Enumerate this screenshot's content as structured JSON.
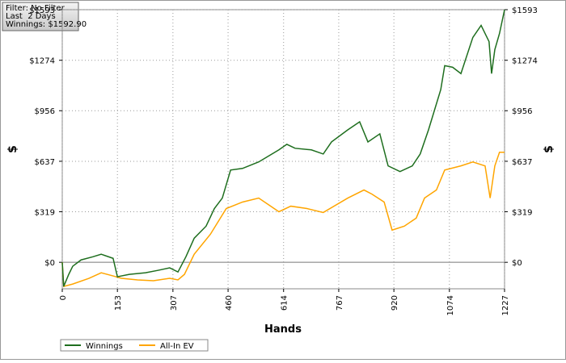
{
  "chart_data": {
    "type": "line",
    "info_box": [
      "Filter: No Filter",
      "Last  2 Days",
      "Winnings: $1592.90"
    ],
    "x_label": "Hands",
    "y_label": "$",
    "y2_label": "$",
    "xlim": [
      0,
      1227
    ],
    "xticks": [
      0,
      153,
      307,
      460,
      614,
      767,
      920,
      1074,
      1227
    ],
    "ylim": [
      -167,
      1593
    ],
    "yticks": [
      {
        "value": 0,
        "label": "$0"
      },
      {
        "value": 319,
        "label": "$319"
      },
      {
        "value": 637,
        "label": "$637"
      },
      {
        "value": 956,
        "label": "$956"
      },
      {
        "value": 1274,
        "label": "$1274"
      },
      {
        "value": 1593,
        "label": "$1593"
      }
    ],
    "grid": true,
    "legend": "bottom-left",
    "series": [
      {
        "name": "Winnings",
        "color": "#1e6e1e",
        "x": [
          0,
          4,
          18,
          29,
          52,
          85,
          108,
          141,
          153,
          186,
          231,
          265,
          298,
          321,
          343,
          366,
          399,
          422,
          444,
          467,
          500,
          545,
          601,
          623,
          646,
          691,
          724,
          747,
          792,
          825,
          848,
          881,
          904,
          937,
          971,
          993,
          1016,
          1050,
          1061,
          1083,
          1106,
          1139,
          1162,
          1184,
          1191,
          1200,
          1213,
          1227
        ],
        "values": [
          0,
          -152,
          -76,
          -25,
          15,
          35,
          51,
          25,
          -91,
          -76,
          -66,
          -51,
          -35,
          -61,
          35,
          152,
          228,
          339,
          405,
          582,
          592,
          633,
          709,
          744,
          719,
          709,
          683,
          759,
          835,
          886,
          759,
          810,
          608,
          572,
          608,
          683,
          835,
          1089,
          1240,
          1230,
          1190,
          1418,
          1494,
          1392,
          1190,
          1341,
          1443,
          1593
        ]
      },
      {
        "name": "All-In EV",
        "color": "#ffa500",
        "x": [
          0,
          4,
          29,
          74,
          108,
          141,
          164,
          209,
          253,
          298,
          321,
          339,
          366,
          411,
          455,
          500,
          545,
          601,
          634,
          679,
          724,
          792,
          837,
          859,
          893,
          915,
          949,
          982,
          1005,
          1038,
          1061,
          1106,
          1139,
          1173,
          1187,
          1200,
          1213,
          1227
        ],
        "values": [
          0,
          -152,
          -137,
          -101,
          -66,
          -86,
          -101,
          -111,
          -116,
          -101,
          -111,
          -76,
          51,
          177,
          339,
          380,
          405,
          319,
          354,
          339,
          314,
          405,
          456,
          430,
          380,
          203,
          228,
          279,
          405,
          456,
          582,
          608,
          633,
          608,
          405,
          608,
          694,
          694
        ]
      }
    ]
  }
}
